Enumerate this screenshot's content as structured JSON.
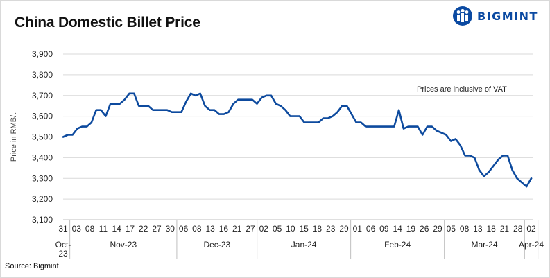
{
  "header": {
    "title": "China Domestic Billet Price",
    "logo_text": "BIGMINT",
    "logo_icon": "bigmint-people-logo-icon"
  },
  "footer": {
    "source": "Source: Bigmint"
  },
  "colors": {
    "line": "#0d4a9e",
    "grid": "#d9d9d9",
    "logo": "#0b4aa2"
  },
  "chart_data": {
    "type": "line",
    "title": "China Domestic Billet Price",
    "xlabel": "",
    "ylabel": "Price in RMB/t",
    "ylim": [
      3100,
      3900
    ],
    "yticks": [
      3100,
      3200,
      3300,
      3400,
      3500,
      3600,
      3700,
      3800,
      3900
    ],
    "ytick_labels": [
      "3,100",
      "3,200",
      "3,300",
      "3,400",
      "3,500",
      "3,600",
      "3,700",
      "3,800",
      "3,900"
    ],
    "grid": "horizontal",
    "annotation": "Prices are inclusive of VAT",
    "x_day_labels": [
      "31",
      "03",
      "08",
      "11",
      "14",
      "17",
      "22",
      "27",
      "30",
      "06",
      "08",
      "13",
      "16",
      "21",
      "27",
      "02",
      "05",
      "10",
      "15",
      "18",
      "23",
      "29",
      "01",
      "06",
      "09",
      "14",
      "19",
      "26",
      "29",
      "05",
      "08",
      "13",
      "18",
      "21",
      "28",
      "02"
    ],
    "month_groups": [
      {
        "label": "Oct-\n23",
        "lines": [
          "Oct-",
          "23"
        ],
        "first_tick": 0,
        "last_tick": 0
      },
      {
        "label": "Nov-23",
        "lines": [
          "Nov-23"
        ],
        "first_tick": 1,
        "last_tick": 8
      },
      {
        "label": "Dec-23",
        "lines": [
          "Dec-23"
        ],
        "first_tick": 9,
        "last_tick": 14
      },
      {
        "label": "Jan-24",
        "lines": [
          "Jan-24"
        ],
        "first_tick": 15,
        "last_tick": 21
      },
      {
        "label": "Feb-24",
        "lines": [
          "Feb-24"
        ],
        "first_tick": 22,
        "last_tick": 28
      },
      {
        "label": "Mar-24",
        "lines": [
          "Mar-24"
        ],
        "first_tick": 29,
        "last_tick": 34
      },
      {
        "label": "Apr-24",
        "lines": [
          "Apr-24"
        ],
        "first_tick": 35,
        "last_tick": 35
      }
    ],
    "series": [
      {
        "values": [
          3500,
          3510,
          3510,
          3540,
          3550,
          3550,
          3570,
          3630,
          3630,
          3600,
          3660,
          3660,
          3660,
          3680,
          3710,
          3710,
          3650,
          3650,
          3650,
          3630,
          3630,
          3630,
          3630,
          3620,
          3620,
          3620,
          3670,
          3710,
          3700,
          3710,
          3650,
          3630,
          3630,
          3610,
          3610,
          3620,
          3660,
          3680,
          3680,
          3680,
          3680,
          3660,
          3690,
          3700,
          3700,
          3660,
          3650,
          3630,
          3600,
          3600,
          3600,
          3570,
          3570,
          3570,
          3570,
          3590,
          3590,
          3600,
          3620,
          3650,
          3650,
          3610,
          3570,
          3570,
          3550,
          3550,
          3550,
          3550,
          3550,
          3550,
          3550,
          3630,
          3540,
          3550,
          3550,
          3550,
          3510,
          3550,
          3550,
          3530,
          3520,
          3510,
          3480,
          3490,
          3460,
          3410,
          3410,
          3400,
          3340,
          3310,
          3330,
          3360,
          3390,
          3410,
          3410,
          3340,
          3300,
          3280,
          3260,
          3300
        ]
      }
    ]
  }
}
